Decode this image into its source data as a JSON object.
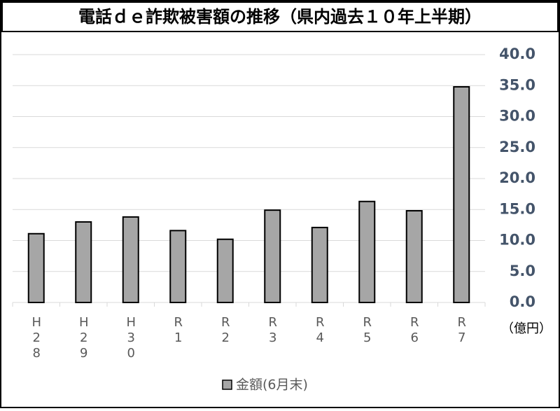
{
  "chart_data": {
    "type": "bar",
    "title": "電話ｄｅ詐欺被害額の推移（県内過去１０年上半期）",
    "categories": [
      "H28",
      "H29",
      "H30",
      "R1",
      "R2",
      "R3",
      "R4",
      "R5",
      "R6",
      "R7"
    ],
    "series": [
      {
        "name": "金額(6月末)",
        "color": "#a6a6a6",
        "values": [
          11.1,
          13.0,
          13.8,
          11.6,
          10.2,
          14.9,
          12.1,
          16.3,
          14.8,
          34.8
        ]
      }
    ],
    "y_label": "（億円）",
    "ylim": [
      0,
      40
    ],
    "yticks": [
      {
        "value": 0,
        "label": "0.0"
      },
      {
        "value": 5,
        "label": "5.0"
      },
      {
        "value": 10,
        "label": "10.0"
      },
      {
        "value": 15,
        "label": "15.0"
      },
      {
        "value": 20,
        "label": "20.0"
      },
      {
        "value": 25,
        "label": "25.0"
      },
      {
        "value": 30,
        "label": "30.0"
      },
      {
        "value": 35,
        "label": "35.0"
      },
      {
        "value": 40,
        "label": "40.0"
      }
    ],
    "grid": true,
    "legend": "bottom"
  }
}
